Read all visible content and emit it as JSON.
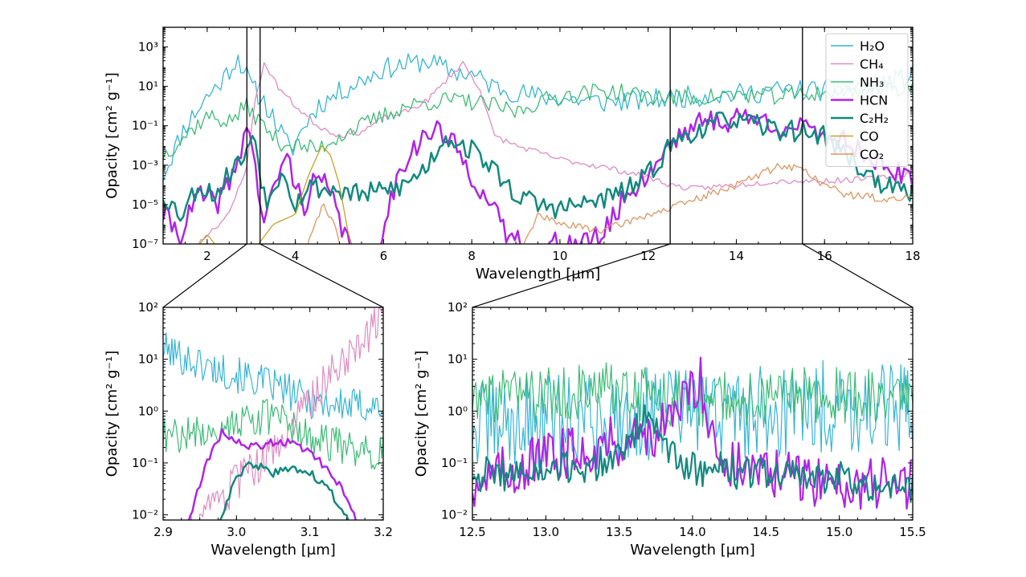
{
  "chart_data": [
    {
      "id": "top",
      "type": "line",
      "xlabel": "Wavelength [μm]",
      "ylabel": "Opacity [cm² g⁻¹]",
      "xlim": [
        1.0,
        18.0
      ],
      "ylim_log10": [
        -7,
        4
      ],
      "yscale": "log",
      "xticks": [
        2,
        4,
        6,
        8,
        10,
        12,
        14,
        16,
        18
      ],
      "yticks": [
        {
          "exp": -7,
          "label": "10⁻⁷"
        },
        {
          "exp": -5,
          "label": "10⁻⁵"
        },
        {
          "exp": -3,
          "label": "10⁻³"
        },
        {
          "exp": -1,
          "label": "10⁻¹"
        },
        {
          "exp": 1,
          "label": "10¹"
        },
        {
          "exp": 3,
          "label": "10³"
        }
      ],
      "zoom_lines": [
        2.9,
        3.2,
        12.5,
        15.5
      ],
      "legend": {
        "placement": "top-right",
        "entries": [
          {
            "label": "H₂O",
            "color": "#35b5d6"
          },
          {
            "label": "CH₄",
            "color": "#e08bc3"
          },
          {
            "label": "NH₃",
            "color": "#3cbc75"
          },
          {
            "label": "HCN",
            "color": "#b023e8"
          },
          {
            "label": "C₂H₂",
            "color": "#12897e"
          },
          {
            "label": "CO",
            "color": "#c9a227"
          },
          {
            "label": "CO₂",
            "color": "#e09560"
          }
        ]
      },
      "series": [
        {
          "color": "#35b5d6",
          "width": 1.3,
          "seed": 11,
          "jitter": 0.55,
          "x": [
            1.0,
            1.5,
            2.0,
            2.3,
            2.7,
            3.0,
            3.3,
            3.6,
            3.9,
            4.2,
            4.5,
            5.0,
            5.5,
            6.0,
            6.5,
            7.0,
            7.5,
            8.0,
            8.5,
            9.0,
            9.5,
            10.0,
            11.0,
            12.0,
            13.0,
            14.0,
            15.0,
            16.0,
            17.0,
            18.0
          ],
          "y": [
            -3.5,
            -1.0,
            0.5,
            1.2,
            2.5,
            1.0,
            0.2,
            -1.0,
            -2.3,
            -1.0,
            0.0,
            0.7,
            1.3,
            1.9,
            2.1,
            2.3,
            1.8,
            1.6,
            1.0,
            0.7,
            0.5,
            0.4,
            0.2,
            0.3,
            0.5,
            0.6,
            0.8,
            0.8,
            1.0,
            1.5
          ]
        },
        {
          "color": "#e08bc3",
          "width": 1.3,
          "seed": 23,
          "jitter": 0.15,
          "x": [
            1.0,
            1.6,
            2.0,
            2.5,
            2.9,
            3.1,
            3.3,
            3.6,
            4.0,
            4.5,
            5.0,
            5.5,
            6.0,
            6.5,
            7.0,
            7.5,
            7.8,
            8.2,
            8.5,
            9.0,
            10.0,
            11.0,
            12.0,
            12.5,
            13.0,
            14.0,
            15.0,
            16.0,
            17.0,
            18.0
          ],
          "y": [
            -7.5,
            -7.5,
            -6.5,
            -5.5,
            -3.0,
            0.5,
            2.2,
            1.0,
            0.0,
            -1.0,
            -1.5,
            -1.3,
            -0.6,
            -0.3,
            0.3,
            1.5,
            2.2,
            0.8,
            -1.5,
            -2.0,
            -2.7,
            -3.1,
            -3.6,
            -4.0,
            -4.2,
            -4.0,
            -3.8,
            -3.8,
            -3.7,
            -3.4
          ]
        },
        {
          "color": "#3cbc75",
          "width": 1.3,
          "seed": 37,
          "jitter": 0.45,
          "x": [
            1.0,
            1.5,
            2.0,
            2.5,
            2.9,
            3.2,
            3.6,
            4.0,
            4.5,
            5.0,
            5.5,
            6.0,
            6.5,
            7.0,
            7.5,
            8.0,
            8.5,
            9.0,
            9.5,
            10.0,
            11.0,
            12.0,
            13.0,
            14.0,
            15.0,
            16.0,
            17.0,
            18.0
          ],
          "y": [
            -2.5,
            -1.5,
            -0.5,
            -0.8,
            0.0,
            -0.8,
            -1.8,
            -2.0,
            -2.2,
            -1.5,
            -1.0,
            -0.5,
            0.0,
            0.2,
            0.3,
            0.2,
            0.0,
            -0.3,
            0.2,
            0.5,
            0.8,
            0.5,
            0.4,
            0.6,
            0.5,
            0.7,
            0.8,
            1.0
          ]
        },
        {
          "color": "#b023e8",
          "width": 2.5,
          "seed": 41,
          "jitter": 0.6,
          "x": [
            1.0,
            1.4,
            1.8,
            2.2,
            2.6,
            2.9,
            3.0,
            3.1,
            3.3,
            3.6,
            3.8,
            4.0,
            4.2,
            4.5,
            4.8,
            5.1,
            5.4,
            5.7,
            6.0,
            6.4,
            6.8,
            7.2,
            7.6,
            8.0,
            8.4,
            8.8,
            9.2,
            9.6,
            10.0,
            10.5,
            11.0,
            11.5,
            12.0,
            12.5,
            13.0,
            13.5,
            13.8,
            14.0,
            14.5,
            15.0,
            15.5,
            16.0,
            16.5,
            17.0,
            17.5,
            18.0
          ],
          "y": [
            -5.5,
            -6.5,
            -4.5,
            -5.0,
            -3.5,
            -1.0,
            -1.5,
            -3.5,
            -6.0,
            -3.5,
            -2.5,
            -4.0,
            -5.0,
            -3.5,
            -4.5,
            -6.5,
            -7.5,
            -8.5,
            -6.0,
            -3.0,
            -1.8,
            -1.2,
            -2.0,
            -3.5,
            -5.0,
            -6.5,
            -7.0,
            -7.5,
            -6.8,
            -7.0,
            -6.5,
            -4.5,
            -3.5,
            -1.8,
            -1.0,
            -0.7,
            -0.8,
            -0.5,
            -0.7,
            -1.0,
            -1.2,
            -1.4,
            -1.8,
            -2.5,
            -3.2,
            -4.0
          ]
        },
        {
          "color": "#12897e",
          "width": 2.5,
          "seed": 53,
          "jitter": 0.55,
          "x": [
            1.0,
            1.4,
            1.8,
            2.2,
            2.6,
            2.9,
            3.05,
            3.2,
            3.4,
            3.7,
            4.0,
            4.3,
            4.6,
            5.0,
            5.5,
            6.0,
            6.5,
            7.0,
            7.4,
            7.8,
            8.2,
            8.6,
            9.0,
            9.5,
            10.0,
            10.5,
            11.0,
            11.5,
            12.0,
            12.5,
            13.0,
            13.5,
            13.8,
            14.0,
            14.5,
            15.0,
            15.5,
            16.0,
            16.5,
            17.0,
            17.5,
            18.0
          ],
          "y": [
            -4.5,
            -5.5,
            -4.0,
            -4.5,
            -3.0,
            -2.5,
            -1.0,
            -3.5,
            -5.0,
            -3.0,
            -5.0,
            -4.0,
            -4.2,
            -4.3,
            -4.5,
            -4.3,
            -4.0,
            -3.0,
            -1.5,
            -2.0,
            -2.5,
            -3.5,
            -4.5,
            -5.0,
            -5.2,
            -5.0,
            -4.7,
            -4.3,
            -3.5,
            -2.0,
            -1.3,
            -1.0,
            -0.5,
            -0.8,
            -1.0,
            -1.2,
            -1.3,
            -1.5,
            -2.5,
            -3.5,
            -4.2,
            -4.5
          ]
        },
        {
          "color": "#c9a227",
          "width": 1.3,
          "seed": 61,
          "jitter": 0.0,
          "x": [
            1.0,
            1.5,
            2.0,
            2.5,
            3.0,
            3.5,
            4.0,
            4.3,
            4.6,
            4.8,
            5.0,
            5.2,
            5.5,
            5.8,
            6.0,
            12.5,
            13.5,
            13.6,
            14.0,
            15.0,
            18.0
          ],
          "y": [
            -7.2,
            -8.0,
            -6.5,
            -8.0,
            -7.5,
            -6.0,
            -5.5,
            -3.5,
            -2.0,
            -2.5,
            -4.0,
            -6.5,
            -8.5,
            -9.0,
            -9.5,
            -9.5,
            -9.5,
            -9.5,
            -9.5,
            -9.5,
            -9.5
          ]
        },
        {
          "color": "#e09560",
          "width": 1.3,
          "seed": 71,
          "jitter": 0.2,
          "x": [
            4.0,
            4.3,
            4.6,
            4.9,
            5.2,
            6.0,
            8.0,
            9.0,
            9.5,
            10.0,
            11.0,
            12.0,
            12.5,
            13.0,
            14.0,
            14.5,
            15.0,
            15.5,
            16.0,
            16.5,
            17.0,
            17.5,
            18.0
          ],
          "y": [
            -9.0,
            -7.0,
            -5.0,
            -6.0,
            -9.0,
            -9.5,
            -9.5,
            -8.0,
            -5.5,
            -6.0,
            -6.3,
            -5.5,
            -5.2,
            -4.8,
            -4.0,
            -3.5,
            -3.0,
            -3.2,
            -4.0,
            -4.5,
            -4.6,
            -4.8,
            -4.6
          ]
        }
      ]
    },
    {
      "id": "bottom-left",
      "type": "line",
      "xlabel": "Wavelength [μm]",
      "ylabel": "Opacity [cm² g⁻¹]",
      "xlim": [
        2.9,
        3.2
      ],
      "ylim_log10": [
        -2.1,
        2
      ],
      "yscale": "log",
      "xticks": [
        2.9,
        3.0,
        3.1,
        3.2
      ],
      "xticklabels": [
        "2.9",
        "3.0",
        "3.1",
        "3.2"
      ],
      "yticks": [
        {
          "exp": -2,
          "label": "10⁻²"
        },
        {
          "exp": -1,
          "label": "10⁻¹"
        },
        {
          "exp": 0,
          "label": "10⁰"
        },
        {
          "exp": 1,
          "label": "10¹"
        },
        {
          "exp": 2,
          "label": "10²"
        }
      ],
      "series": [
        {
          "color": "#35b5d6",
          "width": 1.2,
          "seed": 101,
          "jitter": 0.35,
          "noise_points": 150,
          "x": [
            2.9,
            2.95,
            3.0,
            3.05,
            3.1,
            3.15,
            3.2
          ],
          "y": [
            1.2,
            0.9,
            0.7,
            0.5,
            0.2,
            0.1,
            0.1
          ]
        },
        {
          "color": "#e08bc3",
          "width": 1.2,
          "seed": 103,
          "jitter": 0.4,
          "noise_points": 150,
          "x": [
            2.9,
            2.95,
            3.0,
            3.05,
            3.1,
            3.15,
            3.2
          ],
          "y": [
            -3.0,
            -2.2,
            -1.4,
            -0.8,
            0.2,
            1.1,
            1.8
          ]
        },
        {
          "color": "#3cbc75",
          "width": 1.2,
          "seed": 107,
          "jitter": 0.35,
          "noise_points": 150,
          "x": [
            2.9,
            2.95,
            3.0,
            3.05,
            3.1,
            3.15,
            3.2
          ],
          "y": [
            -0.5,
            -0.4,
            -0.2,
            -0.1,
            -0.5,
            -0.7,
            -0.8
          ]
        },
        {
          "color": "#b023e8",
          "width": 2.5,
          "seed": 109,
          "jitter": 0.08,
          "noise_points": 90,
          "x": [
            2.9,
            2.93,
            2.96,
            2.98,
            3.0,
            3.02,
            3.05,
            3.08,
            3.11,
            3.14,
            3.17,
            3.2
          ],
          "y": [
            -3.2,
            -2.3,
            -1.0,
            -0.4,
            -0.6,
            -0.7,
            -0.6,
            -0.6,
            -0.9,
            -1.4,
            -2.3,
            -3.2
          ]
        },
        {
          "color": "#12897e",
          "width": 2.5,
          "seed": 113,
          "jitter": 0.08,
          "noise_points": 90,
          "x": [
            2.9,
            2.95,
            2.98,
            3.0,
            3.02,
            3.05,
            3.08,
            3.1,
            3.12,
            3.14,
            3.17,
            3.2
          ],
          "y": [
            -3.5,
            -3.0,
            -2.0,
            -1.3,
            -1.0,
            -1.2,
            -1.1,
            -1.2,
            -1.4,
            -1.8,
            -2.6,
            -3.5
          ]
        }
      ]
    },
    {
      "id": "bottom-right",
      "type": "line",
      "xlabel": "Wavelength [μm]",
      "ylabel": "Opacity [cm² g⁻¹]",
      "xlim": [
        12.5,
        15.5
      ],
      "ylim_log10": [
        -2.1,
        2
      ],
      "yscale": "log",
      "xticks": [
        12.5,
        13.0,
        13.5,
        14.0,
        14.5,
        15.0,
        15.5
      ],
      "xticklabels": [
        "12.5",
        "13.0",
        "13.5",
        "14.0",
        "14.5",
        "15.0",
        "15.5"
      ],
      "yticks": [
        {
          "exp": -2,
          "label": "10⁻²"
        },
        {
          "exp": -1,
          "label": "10⁻¹"
        },
        {
          "exp": 0,
          "label": "10⁰"
        },
        {
          "exp": 1,
          "label": "10¹"
        },
        {
          "exp": 2,
          "label": "10²"
        }
      ],
      "series": [
        {
          "color": "#35b5d6",
          "width": 1.2,
          "seed": 201,
          "jitter": 0.9,
          "noise_points": 260,
          "x": [
            12.5,
            13.0,
            13.5,
            14.0,
            14.5,
            15.0,
            15.5
          ],
          "y": [
            -0.3,
            -0.2,
            -0.1,
            0.0,
            0.0,
            0.1,
            0.0
          ]
        },
        {
          "color": "#3cbc75",
          "width": 1.2,
          "seed": 203,
          "jitter": 0.55,
          "noise_points": 260,
          "x": [
            12.5,
            13.0,
            13.5,
            14.0,
            14.5,
            15.0,
            15.5
          ],
          "y": [
            0.2,
            0.3,
            0.4,
            0.2,
            0.3,
            0.3,
            0.2
          ]
        },
        {
          "color": "#b023e8",
          "width": 2.2,
          "seed": 207,
          "jitter": 0.5,
          "noise_points": 220,
          "x": [
            12.5,
            13.0,
            13.3,
            13.6,
            13.85,
            13.95,
            14.05,
            14.2,
            14.5,
            15.0,
            15.5
          ],
          "y": [
            -1.4,
            -0.9,
            -0.7,
            -0.5,
            -0.3,
            0.3,
            0.6,
            -1.0,
            -1.2,
            -1.4,
            -1.4
          ]
        },
        {
          "color": "#12897e",
          "width": 2.2,
          "seed": 211,
          "jitter": 0.35,
          "noise_points": 220,
          "x": [
            12.5,
            13.0,
            13.4,
            13.6,
            13.7,
            13.8,
            14.0,
            14.5,
            15.0,
            15.5
          ],
          "y": [
            -1.2,
            -1.2,
            -1.0,
            -0.5,
            0.2,
            -0.8,
            -1.1,
            -1.2,
            -1.3,
            -1.5
          ]
        }
      ]
    }
  ]
}
